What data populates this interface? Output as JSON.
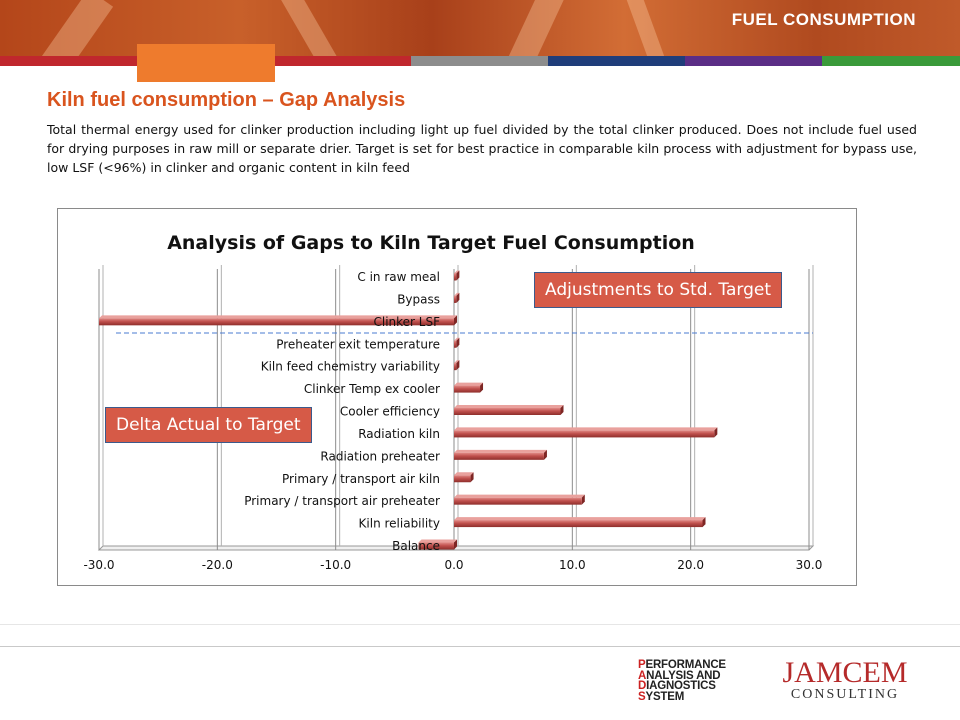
{
  "header": {
    "title": "FUEL CONSUMPTION"
  },
  "stripes": [
    "#c0272d",
    "#c0272d",
    "#8d8d8d",
    "#1f3d7a",
    "#5b2d86",
    "#3a9a3a"
  ],
  "slide": {
    "title": "Kiln fuel consumption – Gap Analysis",
    "description": "Total thermal energy used for clinker production including light up fuel divided by the total clinker produced. Does not include fuel used for drying purposes in raw mill or separate drier. Target is set for best practice in comparable kiln process with adjustment for bypass use, low LSF (<96%) in clinker and organic content in kiln feed"
  },
  "chart_data": {
    "type": "bar",
    "orientation": "horizontal",
    "title": "Analysis of Gaps to Kiln Target Fuel  Consumption",
    "categories": [
      "C in raw meal",
      "Bypass",
      "Clinker LSF",
      "Preheater exit temperature",
      "Kiln feed chemistry variability",
      "Clinker Temp ex cooler",
      "Cooler efficiency",
      "Radiation kiln",
      "Radiation preheater",
      "Primary / transport air kiln",
      "Primary / transport air preheater",
      "Kiln reliability",
      "Balance"
    ],
    "values": [
      0.2,
      0.2,
      -30.0,
      0.2,
      0.2,
      2.2,
      9.0,
      22.0,
      7.6,
      1.4,
      10.8,
      21.0,
      -3.0
    ],
    "xlim": [
      -30,
      30
    ],
    "xticks": [
      "-30.0",
      "-20.0",
      "-10.0",
      "0.0",
      "10.0",
      "20.0",
      "30.0"
    ],
    "xtick_values": [
      -30,
      -20,
      -10,
      0,
      10,
      20,
      30
    ],
    "grid": true,
    "bar_color": "#c0504d",
    "separator_after_index": 2,
    "annotations": {
      "upper": "Adjustments to Std. Target",
      "lower": "Delta Actual to Target"
    }
  },
  "logos": {
    "pads": [
      "PERFORMANCE",
      "ANALYSIS AND",
      "DIAGNOSTICS",
      "SYSTEM"
    ],
    "jamcem_top": "JAMCEM",
    "jamcem_bottom": "CONSULTING"
  }
}
